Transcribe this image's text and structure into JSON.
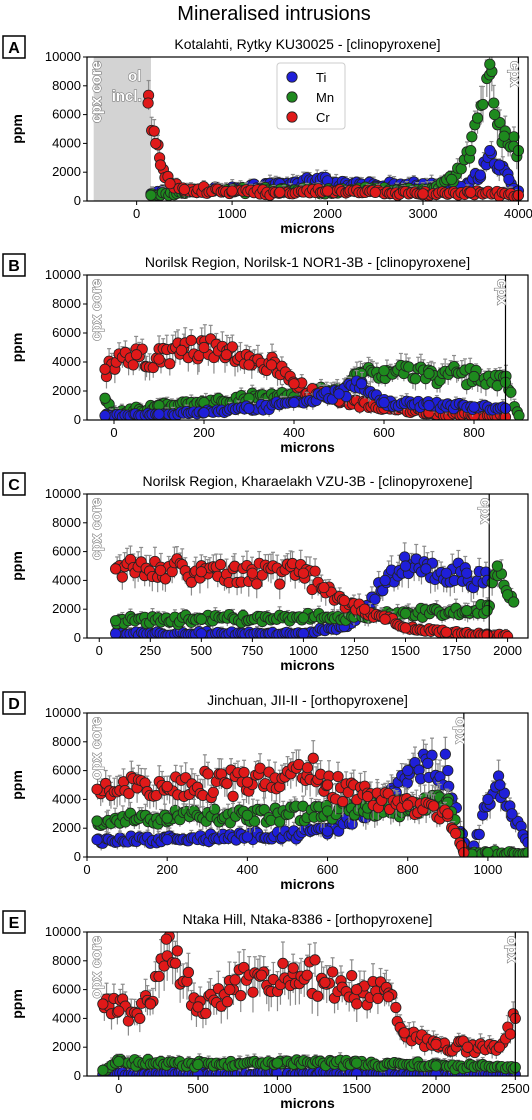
{
  "figure_title": "Mineralised intrusions",
  "legend": [
    {
      "name": "Ti",
      "color": "#1f1fd9"
    },
    {
      "name": "Mn",
      "color": "#1e8a1e"
    },
    {
      "name": "Cr",
      "color": "#e01919"
    }
  ],
  "chart_data": [
    {
      "panel": "A",
      "type": "scatter",
      "title": "Kotalahti, Rytky KU30025 - [clinopyroxene]",
      "xlabel": "microns",
      "ylabel": "ppm",
      "xlim": [
        -520,
        4100
      ],
      "ylim": [
        0,
        10000
      ],
      "xticks": [
        0,
        1000,
        2000,
        3000,
        4000
      ],
      "yticks": [
        0,
        2000,
        4000,
        6000,
        8000,
        10000
      ],
      "core_label": "cpx core",
      "inclusion_label": "ol incl.",
      "inclusion_range": [
        -450,
        150
      ],
      "rim_label": "cpx",
      "rim_x": 4000,
      "series": [
        {
          "name": "Ti",
          "x": [
            150,
            500,
            1000,
            1500,
            2000,
            2500,
            3000,
            3400,
            3600,
            3700,
            3800,
            3900,
            4000
          ],
          "y": [
            500,
            700,
            800,
            1200,
            1400,
            1000,
            1200,
            1000,
            1800,
            3500,
            2500,
            1500,
            700
          ]
        },
        {
          "name": "Mn",
          "x": [
            150,
            500,
            1000,
            1500,
            2000,
            2500,
            3000,
            3300,
            3500,
            3700,
            3750,
            3850,
            3950,
            4000
          ],
          "y": [
            400,
            600,
            700,
            800,
            700,
            800,
            700,
            1500,
            3500,
            9500,
            6000,
            4500,
            3800,
            3500
          ]
        },
        {
          "name": "Cr",
          "x": [
            120,
            200,
            250,
            350,
            500,
            1000,
            1500,
            2000,
            2500,
            3000,
            3500,
            4000
          ],
          "y": [
            6800,
            4000,
            2500,
            1200,
            800,
            700,
            600,
            700,
            600,
            500,
            600,
            400
          ]
        }
      ]
    },
    {
      "panel": "B",
      "type": "scatter",
      "title": "Norilsk Region, Norilsk-1 NOR1-3B - [clinopyroxene]",
      "xlabel": "microns",
      "ylabel": "ppm",
      "xlim": [
        -60,
        920
      ],
      "ylim": [
        0,
        10000
      ],
      "xticks": [
        0,
        200,
        400,
        600,
        800
      ],
      "yticks": [
        0,
        2000,
        4000,
        6000,
        8000,
        10000
      ],
      "core_label": "cpx core",
      "rim_label": "cpx",
      "rim_x": 870,
      "series": [
        {
          "name": "Ti",
          "x": [
            -20,
            100,
            200,
            300,
            400,
            500,
            550,
            600,
            700,
            800,
            870
          ],
          "y": [
            300,
            400,
            500,
            800,
            1200,
            1800,
            2500,
            1200,
            1000,
            900,
            800
          ]
        },
        {
          "name": "Mn",
          "x": [
            -20,
            0,
            100,
            200,
            300,
            400,
            500,
            550,
            600,
            700,
            800,
            870,
            900
          ],
          "y": [
            1500,
            400,
            1000,
            1200,
            1500,
            1600,
            2000,
            3200,
            3400,
            3200,
            3000,
            2600,
            300
          ]
        },
        {
          "name": "Cr",
          "x": [
            -20,
            50,
            100,
            150,
            200,
            250,
            300,
            350,
            400,
            450,
            500,
            600,
            700,
            800,
            870
          ],
          "y": [
            3500,
            4500,
            4200,
            4800,
            5000,
            4500,
            3800,
            3800,
            2500,
            1800,
            1300,
            800,
            500,
            300,
            200
          ]
        }
      ]
    },
    {
      "panel": "C",
      "type": "scatter",
      "title": "Norilsk Region, Kharaelakh VZU-3B - [clinopyroxene]",
      "xlabel": "microns",
      "ylabel": "ppm",
      "xlim": [
        -60,
        2100
      ],
      "ylim": [
        0,
        10000
      ],
      "xticks": [
        0,
        250,
        500,
        750,
        1000,
        1250,
        1500,
        1750,
        2000
      ],
      "yticks": [
        0,
        2000,
        4000,
        6000,
        8000,
        10000
      ],
      "core_label": "cpx core",
      "rim_label": "cpx",
      "rim_x": 1910,
      "series": [
        {
          "name": "Ti",
          "x": [
            80,
            500,
            1000,
            1200,
            1300,
            1400,
            1500,
            1600,
            1700,
            1800,
            1900
          ],
          "y": [
            300,
            300,
            300,
            800,
            2000,
            4000,
            5000,
            4800,
            4500,
            4500,
            4000
          ]
        },
        {
          "name": "Mn",
          "x": [
            80,
            500,
            1000,
            1500,
            1800,
            1900,
            1950,
            2000,
            2030
          ],
          "y": [
            1200,
            1300,
            1400,
            1700,
            1900,
            1900,
            5000,
            3000,
            2500
          ]
        },
        {
          "name": "Cr",
          "x": [
            80,
            300,
            500,
            750,
            1000,
            1100,
            1200,
            1300,
            1400,
            1500,
            1700,
            1900,
            2000
          ],
          "y": [
            4800,
            4700,
            4600,
            4500,
            4500,
            3500,
            2600,
            2000,
            1300,
            700,
            400,
            200,
            100
          ]
        }
      ]
    },
    {
      "panel": "D",
      "type": "scatter",
      "title": "Jinchuan, JII-II - [orthopyroxene]",
      "xlabel": "microns",
      "ylabel": "ppm",
      "xlim": [
        0,
        1100
      ],
      "ylim": [
        0,
        10000
      ],
      "xticks": [
        0,
        200,
        400,
        600,
        800,
        1000
      ],
      "yticks": [
        0,
        2000,
        4000,
        6000,
        8000,
        10000
      ],
      "core_label": "opx core",
      "rim_label": "opx",
      "rim_x": 940,
      "series": [
        {
          "name": "Ti",
          "x": [
            25,
            200,
            400,
            600,
            700,
            800,
            850,
            900,
            940,
            960,
            1000,
            1030,
            1060,
            1100
          ],
          "y": [
            1200,
            1200,
            1400,
            1800,
            3000,
            6000,
            6500,
            6000,
            1000,
            200,
            4000,
            5000,
            3000,
            1000
          ]
        },
        {
          "name": "Mn",
          "x": [
            25,
            200,
            400,
            600,
            700,
            800,
            900,
            940,
            960,
            1000,
            1100
          ],
          "y": [
            2500,
            2700,
            2900,
            3200,
            3400,
            3500,
            3800,
            400,
            200,
            300,
            300
          ]
        },
        {
          "name": "Cr",
          "x": [
            25,
            200,
            400,
            550,
            600,
            700,
            800,
            900,
            940
          ],
          "y": [
            4700,
            4900,
            5200,
            6200,
            5000,
            4200,
            3600,
            3000,
            300
          ]
        }
      ]
    },
    {
      "panel": "E",
      "type": "scatter",
      "title": "Ntaka Hill, Ntaka-8386 - [orthopyroxene]",
      "xlabel": "microns",
      "ylabel": "ppm",
      "xlim": [
        -200,
        2580
      ],
      "ylim": [
        0,
        10000
      ],
      "xticks": [
        0,
        500,
        1000,
        1500,
        2000,
        2500
      ],
      "yticks": [
        0,
        2000,
        4000,
        6000,
        8000,
        10000
      ],
      "core_label": "opx core",
      "rim_label": "opx",
      "rim_x": 2500,
      "series": [
        {
          "name": "Ti",
          "x": [
            -100,
            500,
            1000,
            1500,
            2000,
            2500
          ],
          "y": [
            100,
            150,
            200,
            150,
            100,
            100
          ]
        },
        {
          "name": "Mn",
          "x": [
            -100,
            0,
            500,
            1000,
            1500,
            2000,
            2500
          ],
          "y": [
            400,
            1000,
            800,
            900,
            900,
            700,
            600
          ]
        },
        {
          "name": "Cr",
          "x": [
            -100,
            0,
            200,
            300,
            500,
            700,
            900,
            1100,
            1300,
            1500,
            1700,
            1800,
            2000,
            2200,
            2400,
            2500
          ],
          "y": [
            5000,
            4500,
            5000,
            9500,
            4800,
            6000,
            7000,
            7500,
            6500,
            6000,
            5500,
            3000,
            2200,
            2000,
            2000,
            4000
          ]
        }
      ]
    }
  ]
}
